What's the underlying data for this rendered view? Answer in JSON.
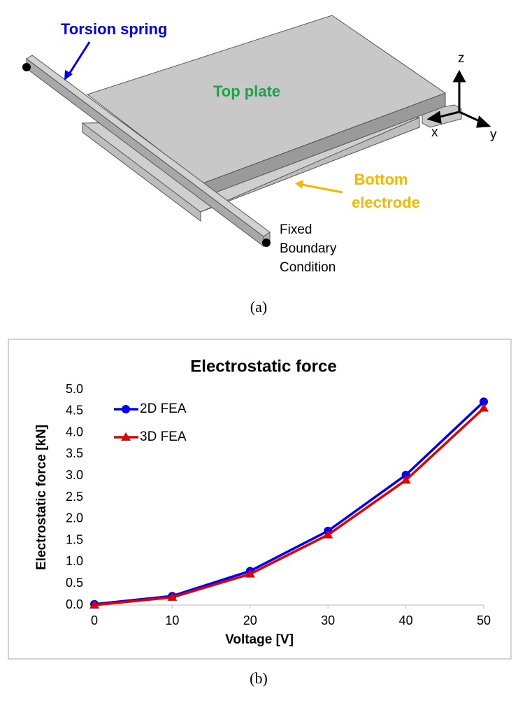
{
  "figure_a": {
    "labels": {
      "torsion_spring": "Torsion spring",
      "top_plate": "Top plate",
      "bottom_electrode": [
        "Bottom",
        "electrode"
      ],
      "fixed_boundary": [
        "Fixed",
        "Boundary",
        "Condition"
      ],
      "axis_z": "z",
      "axis_x": "x",
      "axis_y": "y"
    },
    "caption": "(a)"
  },
  "chart_data": {
    "type": "line",
    "title": "Electrostatic force",
    "x_label": "Voltage [V]",
    "y_label": "Electrostatic force [kN]",
    "x": [
      0,
      10,
      20,
      30,
      40,
      50
    ],
    "series": [
      {
        "name": "2D FEA",
        "color": "#0000ff",
        "marker": "circle",
        "values": [
          0.02,
          0.21,
          0.79,
          1.72,
          3.02,
          4.72
        ]
      },
      {
        "name": "3D FEA",
        "color": "#e00000",
        "marker": "triangle",
        "values": [
          0,
          0.18,
          0.72,
          1.63,
          2.9,
          4.57
        ]
      }
    ],
    "xlim": [
      0,
      50
    ],
    "xticks": [
      0,
      10,
      20,
      30,
      40,
      50
    ],
    "ylim": [
      0,
      5
    ],
    "yticks": [
      {
        "value": 0,
        "label": "0.0"
      },
      0.5,
      {
        "value": 1,
        "label": "1.0"
      },
      1.5,
      {
        "value": 2,
        "label": "2.0"
      },
      2.5,
      {
        "value": 3,
        "label": "3.0"
      },
      3.5,
      {
        "value": 4,
        "label": "4.0"
      },
      4.5,
      {
        "value": 5,
        "label": "5.0"
      }
    ],
    "grid": false,
    "legend": "upper left"
  },
  "caption_b": "(b)"
}
